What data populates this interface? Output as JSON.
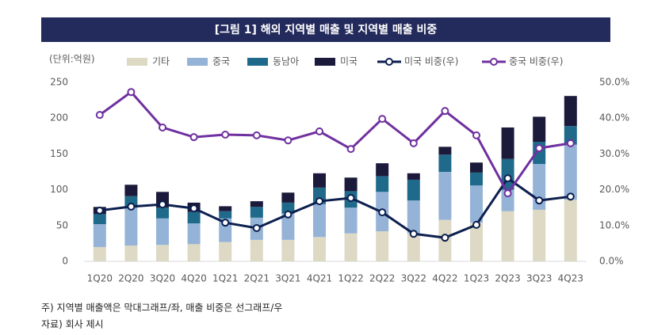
{
  "chart_data": {
    "type": "bar",
    "stacked": true,
    "title": "[그림 1] 해외 지역별 매출 및 지역별 매출 비중",
    "ylabel": "(단위:억원)",
    "categories": [
      "1Q20",
      "2Q20",
      "3Q20",
      "4Q20",
      "1Q21",
      "2Q21",
      "3Q21",
      "4Q21",
      "1Q22",
      "2Q22",
      "3Q22",
      "4Q22",
      "1Q23",
      "2Q23",
      "3Q23",
      "4Q23"
    ],
    "series": [
      {
        "name": "기타",
        "color": "#ddd9c4",
        "values": [
          20,
          22,
          23,
          24,
          27,
          30,
          30,
          34,
          39,
          42,
          39,
          58,
          54,
          70,
          72,
          86
        ]
      },
      {
        "name": "중국",
        "color": "#95b3d7",
        "values": [
          32,
          53,
          37,
          29,
          33,
          31,
          37,
          46,
          36,
          55,
          46,
          67,
          52,
          30,
          64,
          77
        ]
      },
      {
        "name": "동남아",
        "color": "#1f6a8a",
        "values": [
          14,
          16,
          15,
          16,
          10,
          15,
          15,
          23,
          23,
          22,
          29,
          24,
          18,
          43,
          31,
          26
        ]
      },
      {
        "name": "미국",
        "color": "#1c1a3a",
        "values": [
          10,
          16,
          22,
          13,
          7,
          8,
          14,
          20,
          19,
          18,
          9,
          11,
          14,
          44,
          35,
          42
        ]
      },
      {
        "name": "미국 비중(우)",
        "type": "line",
        "axis": "y2",
        "color": "#0d1f4f",
        "values": [
          14.2,
          15.3,
          15.9,
          14.8,
          10.8,
          9.3,
          13.1,
          16.8,
          17.7,
          13.7,
          7.7,
          6.6,
          10.2,
          23.2,
          17.0,
          18.1
        ]
      },
      {
        "name": "중국 비중(우)",
        "type": "line",
        "axis": "y2",
        "color": "#7030a0",
        "values": [
          40.9,
          47.3,
          37.4,
          34.7,
          35.4,
          35.2,
          33.8,
          36.3,
          31.4,
          39.8,
          33.0,
          42.0,
          35.2,
          19.0,
          31.6,
          33.0
        ]
      }
    ],
    "ylim": [
      0,
      250
    ],
    "yticks": [
      0,
      50,
      100,
      150,
      200,
      250
    ],
    "y2lim": [
      0,
      50
    ],
    "y2ticks": [
      {
        "value": 0,
        "label": "0.0%"
      },
      {
        "value": 10,
        "label": "10.0%"
      },
      {
        "value": 20,
        "label": "20.0%"
      },
      {
        "value": 30,
        "label": "30.0%"
      },
      {
        "value": 40,
        "label": "40.0%"
      },
      {
        "value": 50,
        "label": "50.0%"
      }
    ],
    "grid": false,
    "notes": [
      "주) 지역별 매출액은 막대그래프/좌, 매출 비중은 선그래프/우",
      "자료) 회사 제시"
    ]
  }
}
